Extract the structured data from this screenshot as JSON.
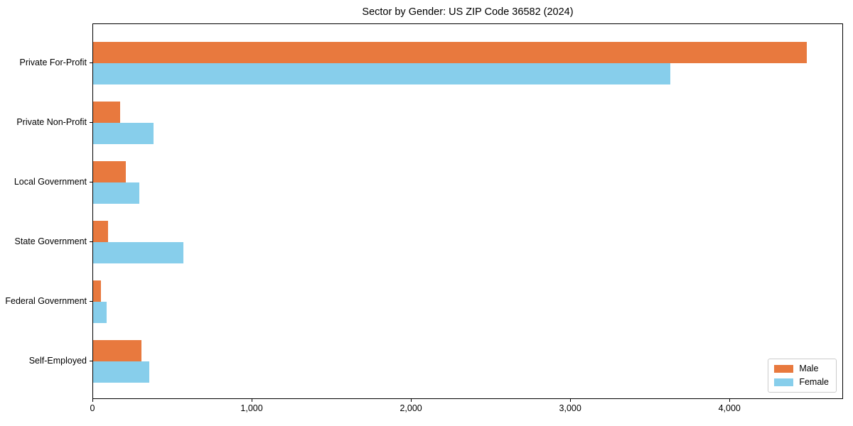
{
  "chart_data": {
    "type": "bar",
    "orientation": "horizontal",
    "title": "Sector by Gender: US ZIP Code 36582 (2024)",
    "categories": [
      "Private For-Profit",
      "Private Non-Profit",
      "Local Government",
      "State Government",
      "Federal Government",
      "Self-Employed"
    ],
    "series": [
      {
        "name": "Male",
        "color": "#e8793e",
        "values": [
          4490,
          170,
          205,
          95,
          50,
          305
        ]
      },
      {
        "name": "Female",
        "color": "#87ceeb",
        "values": [
          3630,
          380,
          290,
          570,
          85,
          355
        ]
      }
    ],
    "xlim": [
      0,
      4713
    ],
    "xticks": [
      0,
      1000,
      2000,
      3000,
      4000
    ],
    "xtick_labels": [
      "0",
      "1,000",
      "2,000",
      "3,000",
      "4,000"
    ],
    "ylabel": "",
    "xlabel": "",
    "grid": false,
    "legend_position": "lower right",
    "background_color": "#ffffff",
    "frame_color": "#000000",
    "text_color": "#000000"
  }
}
